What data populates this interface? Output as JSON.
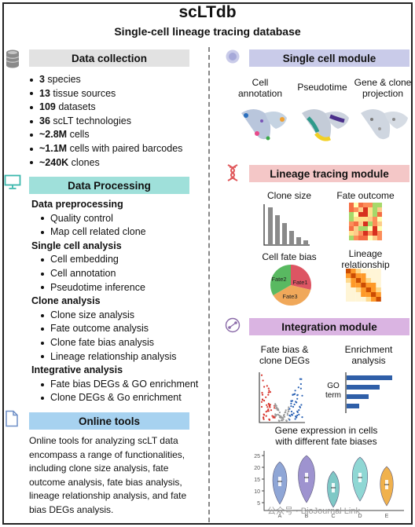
{
  "title": "scLTdb",
  "subtitle": "Single-cell lineage tracing database",
  "sections": {
    "data_collection": "Data collection",
    "data_processing": "Data Processing",
    "online_tools": "Online tools",
    "single_cell_module": "Single cell module",
    "lineage_tracing_module": "Lineage tracing module",
    "integration_module": "Integration module"
  },
  "collection_items": [
    {
      "bold": "3",
      "text": " species"
    },
    {
      "bold": "13",
      "text": " tissue sources"
    },
    {
      "bold": "109",
      "text": " datasets"
    },
    {
      "bold": "36",
      "text": " scLT technologies"
    },
    {
      "bold": "~2.8M",
      "text": " cells"
    },
    {
      "bold": "~1.1M",
      "text": " cells with paired barcodes"
    },
    {
      "bold": "~240K",
      "text": " clones"
    }
  ],
  "processing": [
    {
      "heading": "Data preprocessing",
      "items": [
        "Quality control",
        "Map cell related clone"
      ]
    },
    {
      "heading": "Single cell analysis",
      "items": [
        "Cell embedding",
        "Cell annotation",
        "Pseudotime inference"
      ]
    },
    {
      "heading": "Clone analysis",
      "items": [
        "Clone size analysis",
        "Fate outcome analysis",
        "Clone fate bias analysis",
        "Lineage relationship analysis"
      ]
    },
    {
      "heading": "Integrative analysis",
      "items": [
        "Fate bias DEGs & GO enrichment",
        "Clone DEGs & Go enrichment"
      ]
    }
  ],
  "online_text": "Online tools for analyzing scLT data encompass a range of functionalities, including clone size analysis, fate outcome analysis, fate bias analysis, lineage relationship analysis, and fate bias DEGs analysis.",
  "single_cell": {
    "labels": [
      "Cell\nannotation",
      "Pseudotime",
      "Gene & clone\nprojection"
    ]
  },
  "lineage": {
    "clone_size": "Clone size",
    "fate_outcome": "Fate outcome",
    "cell_fate_bias": "Cell fate bias",
    "lineage_relationship": "Lineage\nrelationship",
    "fates": [
      "Fate1",
      "Fate2",
      "Fate3"
    ]
  },
  "integration": {
    "fate_bias_degs": "Fate bias &\nclone DEGs",
    "enrichment": "Enrichment\nanalysis",
    "go_term": "GO\nterm",
    "gene_expression": "Gene expression in cells\nwith different fate biases",
    "violin_categories": [
      "A",
      "B",
      "C",
      "D",
      "E"
    ],
    "violin_yticks": [
      "25",
      "20",
      "15",
      "10",
      "5"
    ]
  },
  "watermark": "公众号 · BioJournal Link",
  "colors": {
    "gray_header": "#e2e2e2",
    "teal_header": "#9fe0da",
    "blue_header": "#a7d2f0",
    "purple_header": "#c9cbe9",
    "pink_header": "#f4c7c7",
    "violet_header": "#dab4e2"
  }
}
